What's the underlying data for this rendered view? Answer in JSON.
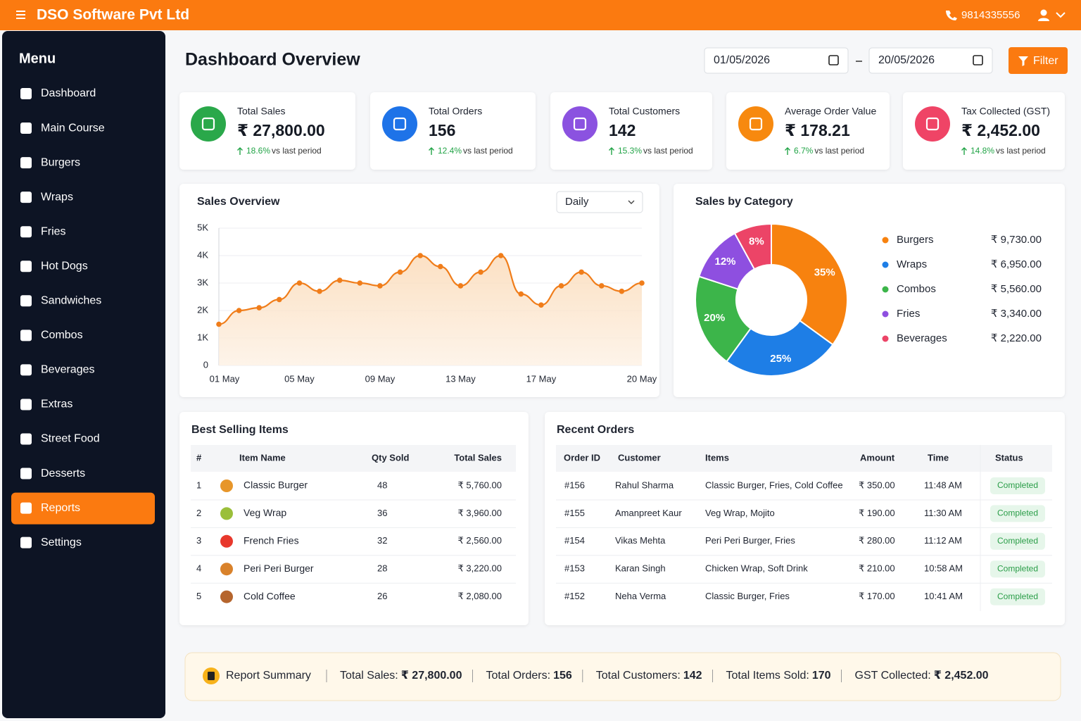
{
  "header": {
    "brand": "DSO Software Pvt Ltd",
    "phone": "9814335556"
  },
  "sidebar": {
    "title": "Menu",
    "items": [
      {
        "label": "Dashboard"
      },
      {
        "label": "Main Course"
      },
      {
        "label": "Burgers"
      },
      {
        "label": "Wraps"
      },
      {
        "label": "Fries"
      },
      {
        "label": "Hot Dogs"
      },
      {
        "label": "Sandwiches"
      },
      {
        "label": "Combos"
      },
      {
        "label": "Beverages"
      },
      {
        "label": "Extras"
      },
      {
        "label": "Street Food"
      },
      {
        "label": "Desserts"
      },
      {
        "label": "Reports",
        "active": true
      },
      {
        "label": "Settings"
      }
    ]
  },
  "page": {
    "title": "Dashboard Overview",
    "date_from": "01/05/2026",
    "date_to": "20/05/2026",
    "filter": "Filter",
    "sales_period": "Daily"
  },
  "kpis": [
    {
      "label": "Total Sales",
      "value": "₹ 27,800.00",
      "change": "18.6%",
      "note": "vs last period",
      "color": "#2aa84a"
    },
    {
      "label": "Total Orders",
      "value": "156",
      "change": "12.4%",
      "note": "vs last period",
      "color": "#1e73e8"
    },
    {
      "label": "Total Customers",
      "value": "142",
      "change": "15.3%",
      "note": "vs last period",
      "color": "#8b52e0"
    },
    {
      "label": "Average Order Value",
      "value": "₹ 178.21",
      "change": "6.7%",
      "note": "vs last period",
      "color": "#f7890f"
    },
    {
      "label": "Tax Collected (GST)",
      "value": "₹ 2,452.00",
      "change": "14.8%",
      "note": "vs last period",
      "color": "#ef4466"
    }
  ],
  "chart_data": [
    {
      "type": "line",
      "title": "Sales Overview",
      "color": "#f07d1a",
      "categories": [
        "01 May",
        null,
        null,
        null,
        "05 May",
        null,
        null,
        null,
        "09 May",
        null,
        null,
        null,
        "13 May",
        null,
        null,
        null,
        "17 May",
        null,
        null,
        null,
        null,
        "20 May"
      ],
      "values": [
        1500,
        2000,
        2100,
        2400,
        3000,
        2700,
        3100,
        3000,
        2900,
        3400,
        4000,
        3600,
        2900,
        3400,
        4000,
        2600,
        2200,
        2900,
        3400,
        2900,
        2700,
        3000
      ],
      "ylim": [
        0,
        5000
      ],
      "yticks": [
        0,
        {
          "value": 1000,
          "label": "1K"
        },
        {
          "value": 2000,
          "label": "2K"
        },
        {
          "value": 3000,
          "label": "3K"
        },
        {
          "value": 4000,
          "label": "4K"
        },
        {
          "value": 5000,
          "label": "5K"
        }
      ],
      "grid": true
    },
    {
      "type": "pie",
      "title": "Sales by Category",
      "donut": true,
      "categories": [
        "Burgers",
        "Wraps",
        "Combos",
        "Fries",
        "Beverages"
      ],
      "values": [
        35,
        25,
        20,
        12,
        8
      ],
      "value_labels": [
        "35%",
        "25%",
        "20%",
        "12%",
        "8%"
      ],
      "amounts": [
        "₹ 9,730.00",
        "₹ 6,950.00",
        "₹ 5,560.00",
        "₹ 3,340.00",
        "₹ 2,220.00"
      ],
      "colors": [
        "#f7820f",
        "#1e7ee6",
        "#3cb54a",
        "#8e4fe0",
        "#ec4467"
      ]
    }
  ],
  "best_selling": {
    "title": "Best Selling Items",
    "columns": [
      "#",
      "Item Name",
      "Qty Sold",
      "Total Sales"
    ],
    "rows": [
      [
        "1",
        "Classic Burger",
        "48",
        "₹ 5,760.00"
      ],
      [
        "2",
        "Veg Wrap",
        "36",
        "₹ 3,960.00"
      ],
      [
        "3",
        "French Fries",
        "32",
        "₹ 2,560.00"
      ],
      [
        "4",
        "Peri Peri Burger",
        "28",
        "₹ 3,220.00"
      ],
      [
        "5",
        "Cold Coffee",
        "26",
        "₹ 2,080.00"
      ]
    ]
  },
  "recent_orders": {
    "title": "Recent Orders",
    "columns": [
      "Order ID",
      "Customer",
      "Items",
      "Amount",
      "Time",
      "Status"
    ],
    "rows": [
      [
        "#156",
        "Rahul Sharma",
        "Classic Burger, Fries, Cold Coffee",
        "₹ 350.00",
        "11:48 AM",
        "Completed"
      ],
      [
        "#155",
        "Amanpreet Kaur",
        "Veg Wrap, Mojito",
        "₹ 190.00",
        "11:30 AM",
        "Completed"
      ],
      [
        "#154",
        "Vikas Mehta",
        "Peri Peri Burger, Fries",
        "₹ 280.00",
        "11:12 AM",
        "Completed"
      ],
      [
        "#153",
        "Karan Singh",
        "Chicken Wrap, Soft Drink",
        "₹ 210.00",
        "10:58 AM",
        "Completed"
      ],
      [
        "#152",
        "Neha Verma",
        "Classic Burger, Fries",
        "₹ 170.00",
        "10:41 AM",
        "Completed"
      ]
    ]
  },
  "summary": {
    "title": "Report Summary",
    "items": [
      {
        "label": "Total Sales:",
        "value": "₹ 27,800.00"
      },
      {
        "label": "Total Orders:",
        "value": "156"
      },
      {
        "label": "Total Customers:",
        "value": "142"
      },
      {
        "label": "Total Items Sold:",
        "value": "170"
      },
      {
        "label": "GST Collected:",
        "value": "₹ 2,452.00"
      }
    ]
  }
}
